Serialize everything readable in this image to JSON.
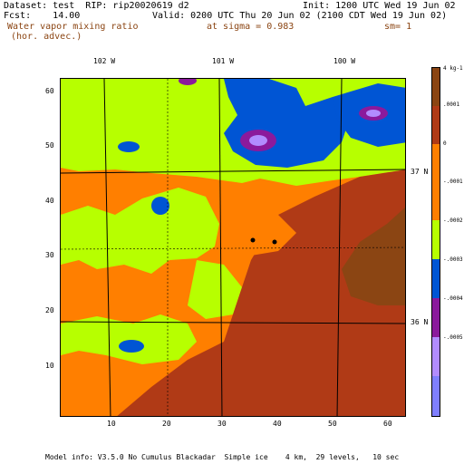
{
  "header": {
    "line1_left": "Dataset: test  RIP: rip20020619 d2",
    "line1_right": "Init: 1200 UTC Wed 19 Jun 02",
    "line2_left": "Fcst:    14.00",
    "line2_right": "Valid: 0200 UTC Thu 20 Jun 02 (2100 CDT Wed 19 Jun 02)",
    "line3_left": "Water vapor mixing ratio",
    "line3_mid": "at sigma = 0.983",
    "line3_right": "sm= 1",
    "line4_left": "(hor. advec.)"
  },
  "map": {
    "lon_labels": [
      "102 W",
      "101 W",
      "100 W"
    ],
    "lat_labels": [
      "37 N",
      "36 N"
    ],
    "x_ticks": [
      "10",
      "20",
      "30",
      "40",
      "50",
      "60"
    ],
    "y_ticks": [
      "60",
      "50",
      "40",
      "30",
      "20",
      "10"
    ],
    "colors": {
      "dark_brown": "#b03a16",
      "orange": "#ff7f00",
      "lime": "#b7ff00",
      "blue": "#0055d4",
      "purple": "#8b1a9c",
      "lavender": "#b28cff",
      "brown": "#8b4513"
    }
  },
  "colorbar": {
    "unit": "g kg-1",
    "labels": [
      "4 kg-1",
      ".0001",
      "0",
      "-.0001",
      "-.0002",
      "-.0003",
      "-.0004",
      "-.0005"
    ],
    "colors": [
      "#8b4513",
      "#b03a16",
      "#ff7f00",
      "#ff7f00",
      "#b7ff00",
      "#0055d4",
      "#8b1a9c",
      "#b28cff",
      "#7f7fff"
    ]
  },
  "footer": "Model info: V3.5.0 No Cumulus Blackadar  Simple ice    4 km,  29 levels,   10 sec"
}
